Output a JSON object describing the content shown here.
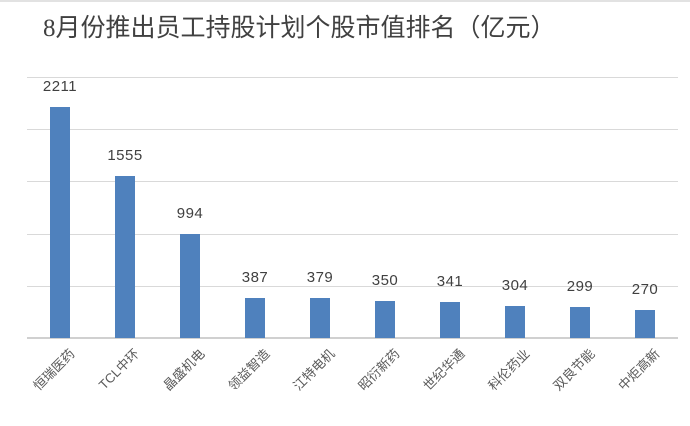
{
  "title": "8月份推出员工持股计划个股市值排名（亿元）",
  "colors": {
    "bar": "#4f81bd",
    "gridline": "#d9d9d9",
    "axis_line": "#d0d0d0",
    "title_text": "#404040",
    "value_label_text": "#404040",
    "category_label_text": "#595959",
    "background": "#ffffff"
  },
  "chart_data": {
    "type": "bar",
    "title": "8月份推出员工持股计划个股市值排名（亿元）",
    "categories": [
      "恒瑞医药",
      "TCL中环",
      "晶盛机电",
      "领益智造",
      "江特电机",
      "昭衍新药",
      "世纪华通",
      "科伦药业",
      "双良节能",
      "中炬高新"
    ],
    "values": [
      2211,
      1555,
      994,
      387,
      379,
      350,
      341,
      304,
      299,
      270
    ],
    "series_color": "#4f81bd",
    "xlabel": "",
    "ylabel": "",
    "ylim": [
      0,
      2500
    ],
    "gridline_step": 500,
    "grid": true,
    "legend": false,
    "y_axis_tick_labels_visible": false,
    "data_labels_visible": true,
    "category_label_rotation_deg": 45
  }
}
